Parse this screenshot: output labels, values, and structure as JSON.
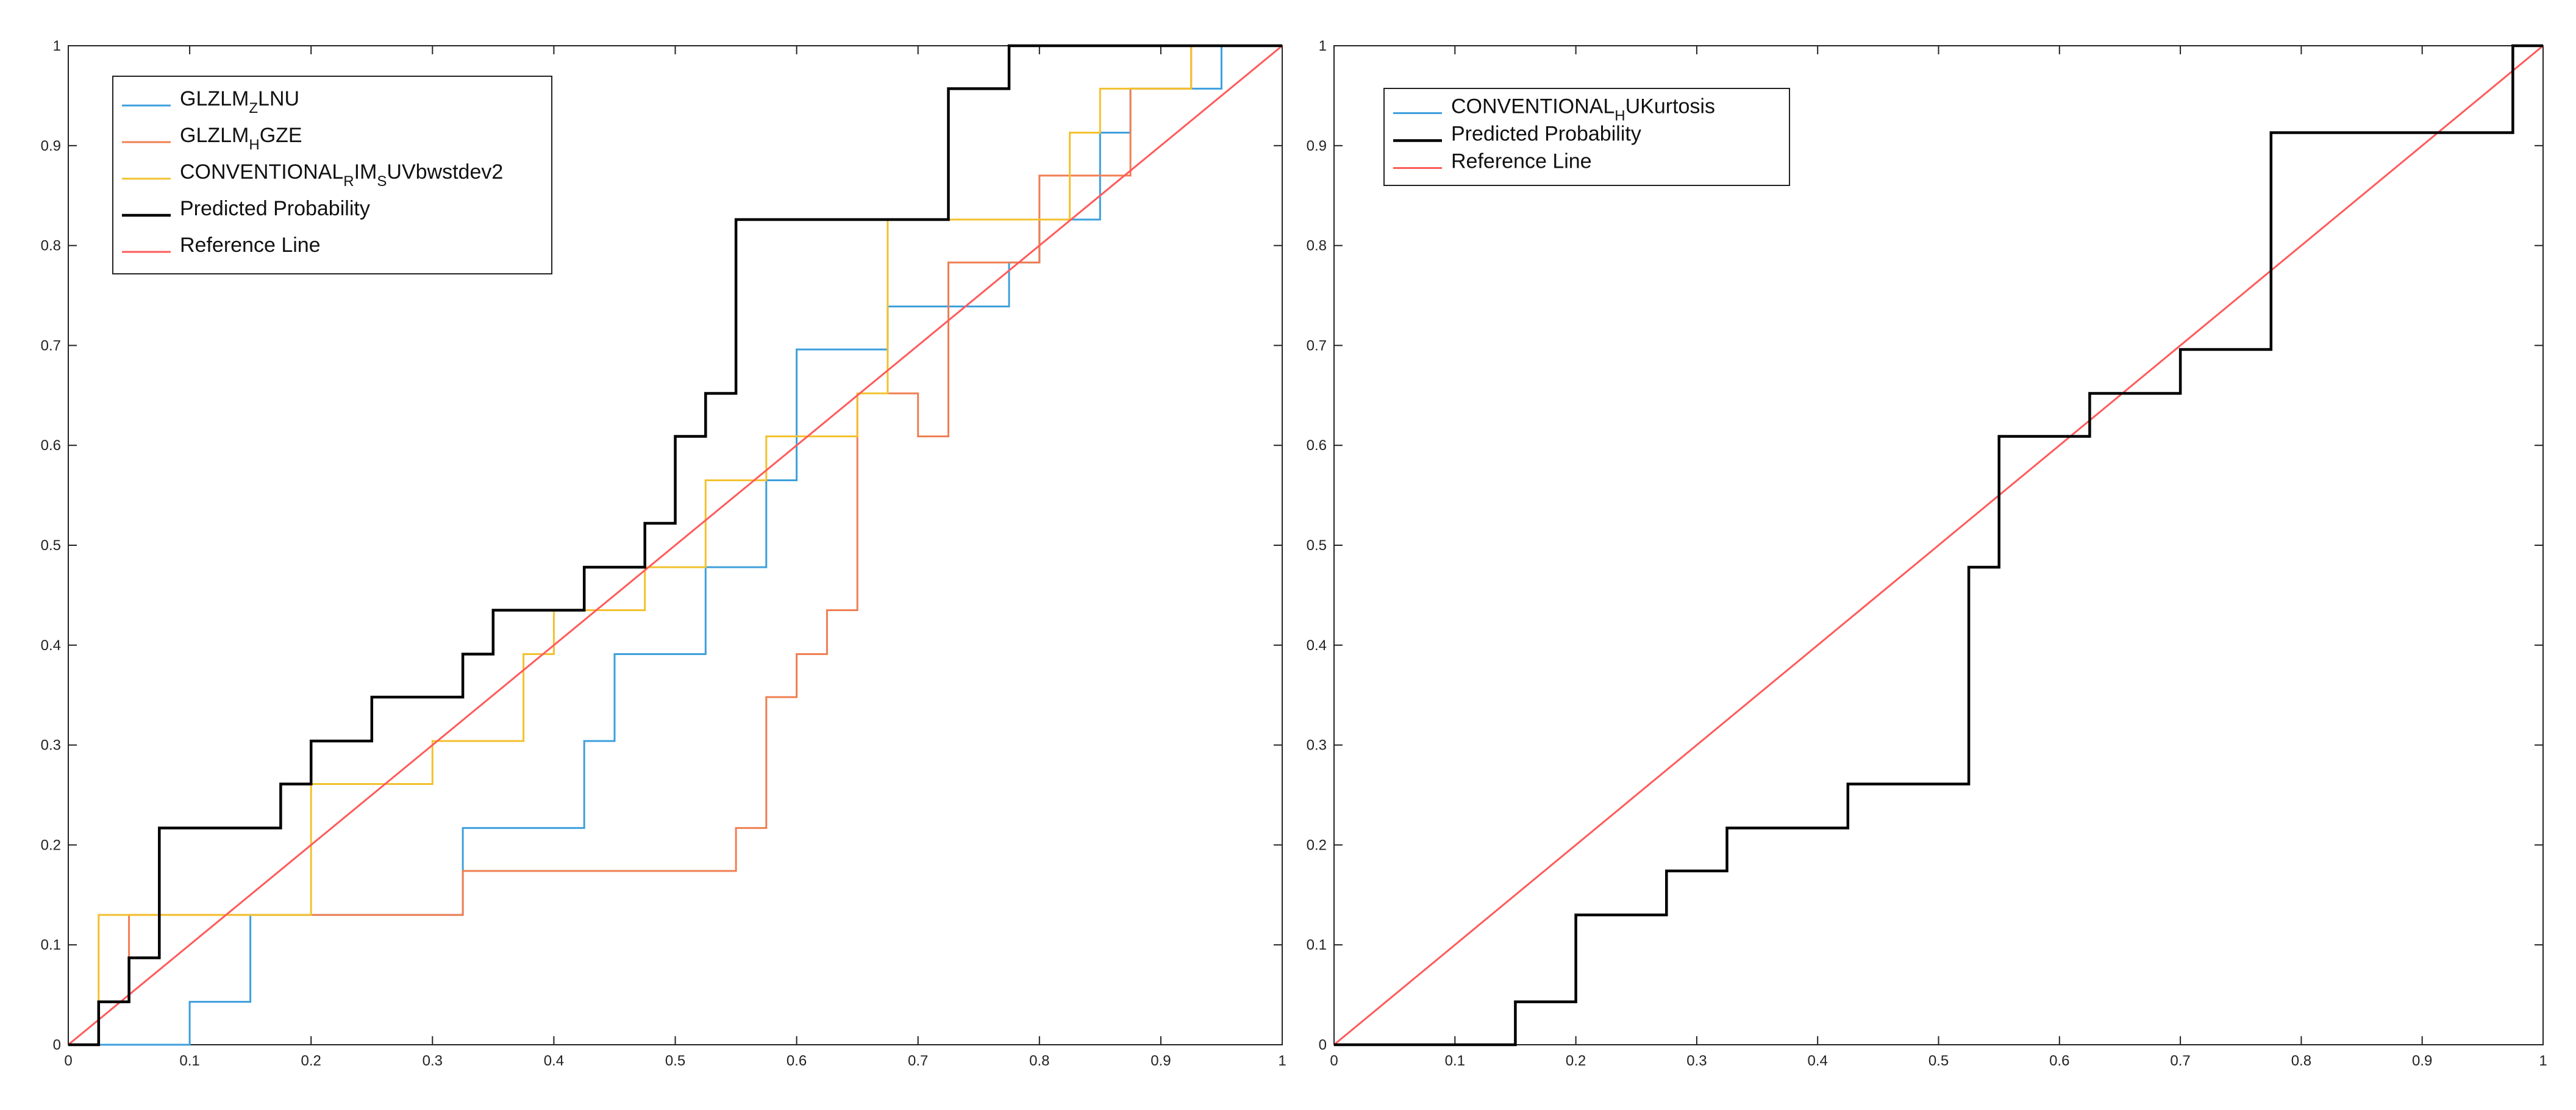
{
  "chart_data": [
    {
      "type": "line",
      "subtype": "step",
      "title": "",
      "xlabel": "",
      "ylabel": "",
      "xlim": [
        0,
        1
      ],
      "ylim": [
        0,
        1
      ],
      "x_ticks": [
        "0",
        "0.1",
        "0.2",
        "0.3",
        "0.4",
        "0.5",
        "0.6",
        "0.7",
        "0.8",
        "0.9",
        "1"
      ],
      "y_ticks": [
        "0",
        "0.1",
        "0.2",
        "0.3",
        "0.4",
        "0.5",
        "0.6",
        "0.7",
        "0.8",
        "0.9",
        "1"
      ],
      "grid": false,
      "legend_position": "top-left",
      "series": [
        {
          "name": "GLZLM_ZLNU",
          "legend_parts": [
            {
              "t": "GLZLM",
              "sub": false
            },
            {
              "t": "Z",
              "sub": true
            },
            {
              "t": "LNU",
              "sub": false
            }
          ],
          "color": "#3d9fdc",
          "points": [
            [
              0,
              0
            ],
            [
              0.1,
              0
            ],
            [
              0.1,
              0.043
            ],
            [
              0.15,
              0.043
            ],
            [
              0.15,
              0.13
            ],
            [
              0.325,
              0.13
            ],
            [
              0.325,
              0.217
            ],
            [
              0.425,
              0.217
            ],
            [
              0.425,
              0.304
            ],
            [
              0.45,
              0.304
            ],
            [
              0.45,
              0.391
            ],
            [
              0.525,
              0.391
            ],
            [
              0.525,
              0.478
            ],
            [
              0.575,
              0.478
            ],
            [
              0.575,
              0.565
            ],
            [
              0.6,
              0.565
            ],
            [
              0.6,
              0.696
            ],
            [
              0.675,
              0.696
            ],
            [
              0.675,
              0.739
            ],
            [
              0.775,
              0.739
            ],
            [
              0.775,
              0.783
            ],
            [
              0.8,
              0.783
            ],
            [
              0.8,
              0.826
            ],
            [
              0.85,
              0.826
            ],
            [
              0.85,
              0.913
            ],
            [
              0.875,
              0.913
            ],
            [
              0.875,
              0.957
            ],
            [
              0.95,
              0.957
            ],
            [
              0.95,
              1
            ],
            [
              1,
              1
            ]
          ]
        },
        {
          "name": "GLZLM_HGZE",
          "legend_parts": [
            {
              "t": "GLZLM",
              "sub": false
            },
            {
              "t": "H",
              "sub": true
            },
            {
              "t": "GZE",
              "sub": false
            }
          ],
          "color": "#f07e52",
          "points": [
            [
              0,
              0
            ],
            [
              0.025,
              0
            ],
            [
              0.025,
              0.043
            ],
            [
              0.05,
              0.043
            ],
            [
              0.05,
              0.13
            ],
            [
              0.325,
              0.13
            ],
            [
              0.325,
              0.174
            ],
            [
              0.55,
              0.174
            ],
            [
              0.55,
              0.217
            ],
            [
              0.575,
              0.217
            ],
            [
              0.575,
              0.348
            ],
            [
              0.6,
              0.348
            ],
            [
              0.6,
              0.391
            ],
            [
              0.625,
              0.391
            ],
            [
              0.625,
              0.435
            ],
            [
              0.65,
              0.435
            ],
            [
              0.65,
              0.652
            ],
            [
              0.7,
              0.652
            ],
            [
              0.7,
              0.609
            ],
            [
              0.725,
              0.609
            ],
            [
              0.725,
              0.783
            ],
            [
              0.775,
              0.783
            ],
            [
              0.775,
              0.783
            ],
            [
              0.8,
              0.783
            ],
            [
              0.8,
              0.87
            ],
            [
              0.875,
              0.87
            ],
            [
              0.875,
              0.957
            ],
            [
              0.925,
              0.957
            ],
            [
              0.925,
              1
            ],
            [
              1,
              1
            ]
          ]
        },
        {
          "name": "CONVENTIONAL_RIM_SUVbwstdev2",
          "legend_parts": [
            {
              "t": "CONVENTIONAL",
              "sub": false
            },
            {
              "t": "R",
              "sub": true
            },
            {
              "t": "IM",
              "sub": false
            },
            {
              "t": "S",
              "sub": true
            },
            {
              "t": "UVbwstdev2",
              "sub": false
            }
          ],
          "color": "#f2c12e",
          "points": [
            [
              0,
              0
            ],
            [
              0.025,
              0
            ],
            [
              0.025,
              0.13
            ],
            [
              0.2,
              0.13
            ],
            [
              0.2,
              0.261
            ],
            [
              0.3,
              0.261
            ],
            [
              0.3,
              0.304
            ],
            [
              0.375,
              0.304
            ],
            [
              0.375,
              0.391
            ],
            [
              0.4,
              0.391
            ],
            [
              0.4,
              0.435
            ],
            [
              0.475,
              0.435
            ],
            [
              0.475,
              0.478
            ],
            [
              0.525,
              0.478
            ],
            [
              0.525,
              0.565
            ],
            [
              0.575,
              0.565
            ],
            [
              0.575,
              0.609
            ],
            [
              0.65,
              0.609
            ],
            [
              0.65,
              0.652
            ],
            [
              0.675,
              0.652
            ],
            [
              0.675,
              0.826
            ],
            [
              0.8,
              0.826
            ],
            [
              0.8,
              0.826
            ],
            [
              0.825,
              0.826
            ],
            [
              0.825,
              0.913
            ],
            [
              0.85,
              0.913
            ],
            [
              0.85,
              0.957
            ],
            [
              0.925,
              0.957
            ],
            [
              0.925,
              1
            ],
            [
              1,
              1
            ]
          ]
        },
        {
          "name": "Predicted Probability",
          "legend_parts": [
            {
              "t": "Predicted Probability",
              "sub": false
            }
          ],
          "color": "#000000",
          "width": 4.5,
          "points": [
            [
              0,
              0
            ],
            [
              0.025,
              0
            ],
            [
              0.025,
              0.043
            ],
            [
              0.05,
              0.043
            ],
            [
              0.05,
              0.087
            ],
            [
              0.075,
              0.087
            ],
            [
              0.075,
              0.217
            ],
            [
              0.175,
              0.217
            ],
            [
              0.175,
              0.261
            ],
            [
              0.2,
              0.261
            ],
            [
              0.2,
              0.304
            ],
            [
              0.25,
              0.304
            ],
            [
              0.25,
              0.348
            ],
            [
              0.325,
              0.348
            ],
            [
              0.325,
              0.391
            ],
            [
              0.35,
              0.391
            ],
            [
              0.35,
              0.435
            ],
            [
              0.425,
              0.435
            ],
            [
              0.425,
              0.478
            ],
            [
              0.475,
              0.478
            ],
            [
              0.475,
              0.522
            ],
            [
              0.5,
              0.522
            ],
            [
              0.5,
              0.609
            ],
            [
              0.525,
              0.609
            ],
            [
              0.525,
              0.652
            ],
            [
              0.55,
              0.652
            ],
            [
              0.55,
              0.826
            ],
            [
              0.725,
              0.826
            ],
            [
              0.725,
              0.957
            ],
            [
              0.775,
              0.957
            ],
            [
              0.775,
              1
            ],
            [
              1,
              1
            ]
          ]
        },
        {
          "name": "Reference Line",
          "legend_parts": [
            {
              "t": "Reference Line",
              "sub": false
            }
          ],
          "color": "#ff5a5a",
          "points": [
            [
              0,
              0
            ],
            [
              1,
              1
            ]
          ]
        }
      ]
    },
    {
      "type": "line",
      "subtype": "step",
      "title": "",
      "xlabel": "",
      "ylabel": "",
      "xlim": [
        0,
        1
      ],
      "ylim": [
        0,
        1
      ],
      "x_ticks": [
        "0",
        "0.1",
        "0.2",
        "0.3",
        "0.4",
        "0.5",
        "0.6",
        "0.7",
        "0.8",
        "0.9",
        "1"
      ],
      "y_ticks": [
        "0",
        "0.1",
        "0.2",
        "0.3",
        "0.4",
        "0.5",
        "0.6",
        "0.7",
        "0.8",
        "0.9",
        "1"
      ],
      "grid": false,
      "legend_position": "top-left",
      "series": [
        {
          "name": "CONVENTIONAL_HUKurtosis",
          "legend_parts": [
            {
              "t": "CONVENTIONAL",
              "sub": false
            },
            {
              "t": "H",
              "sub": true
            },
            {
              "t": "UKurtosis",
              "sub": false
            }
          ],
          "color": "#3d9fdc",
          "points": []
        },
        {
          "name": "Predicted Probability",
          "legend_parts": [
            {
              "t": "Predicted Probability",
              "sub": false
            }
          ],
          "color": "#000000",
          "width": 4.5,
          "points": [
            [
              0,
              0
            ],
            [
              0.15,
              0
            ],
            [
              0.15,
              0.043
            ],
            [
              0.2,
              0.043
            ],
            [
              0.2,
              0.13
            ],
            [
              0.275,
              0.13
            ],
            [
              0.275,
              0.174
            ],
            [
              0.325,
              0.174
            ],
            [
              0.325,
              0.217
            ],
            [
              0.425,
              0.217
            ],
            [
              0.425,
              0.261
            ],
            [
              0.525,
              0.261
            ],
            [
              0.525,
              0.478
            ],
            [
              0.55,
              0.478
            ],
            [
              0.55,
              0.609
            ],
            [
              0.625,
              0.609
            ],
            [
              0.625,
              0.652
            ],
            [
              0.7,
              0.652
            ],
            [
              0.7,
              0.696
            ],
            [
              0.775,
              0.696
            ],
            [
              0.775,
              0.913
            ],
            [
              0.975,
              0.913
            ],
            [
              0.975,
              1
            ],
            [
              1,
              1
            ]
          ]
        },
        {
          "name": "Reference Line",
          "legend_parts": [
            {
              "t": "Reference Line",
              "sub": false
            }
          ],
          "color": "#ff5a5a",
          "points": [
            [
              0,
              0
            ],
            [
              1,
              1
            ]
          ]
        }
      ]
    }
  ]
}
